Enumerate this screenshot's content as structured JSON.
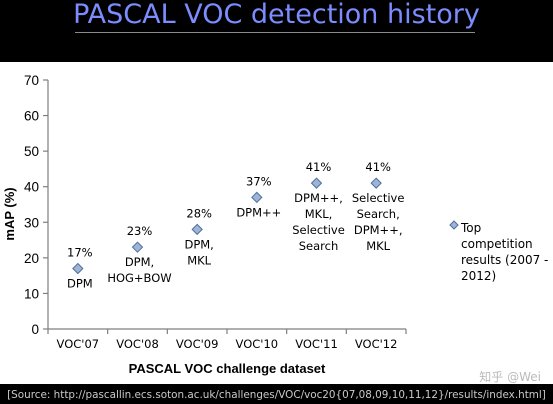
{
  "title": "PASCAL VOC detection history",
  "source": "[Source: http://pascallin.ecs.soton.ac.uk/challenges/VOC/voc20{07,08,09,10,11,12}/results/index.html]",
  "watermark": "知乎 @Wei",
  "colors": {
    "title": "#7b8cff",
    "marker_fill": "#9db4d6",
    "marker_stroke": "#4e6f9b"
  },
  "chart_data": {
    "type": "scatter",
    "xlabel": "PASCAL VOC challenge dataset",
    "ylabel": "mAP  (%)",
    "ylim": [
      0,
      70
    ],
    "yticks": [
      0,
      10,
      20,
      30,
      40,
      50,
      60,
      70
    ],
    "grid": false,
    "legend_position": "right",
    "categories": [
      "VOC'07",
      "VOC'08",
      "VOC'09",
      "VOC'10",
      "VOC'11",
      "VOC'12"
    ],
    "series": [
      {
        "name": "Top competition results (2007 - 2012)",
        "values": [
          17,
          23,
          28,
          37,
          41,
          41
        ]
      }
    ],
    "value_labels": [
      "17%",
      "23%",
      "28%",
      "37%",
      "41%",
      "41%"
    ],
    "method_labels": [
      [
        "DPM"
      ],
      [
        "DPM,",
        "HOG+BOW"
      ],
      [
        "DPM,",
        "MKL"
      ],
      [
        "DPM++"
      ],
      [
        "DPM++,",
        "MKL,",
        "Selective",
        "Search"
      ],
      [
        "Selective",
        "Search,",
        "DPM++,",
        "MKL"
      ]
    ],
    "legend_lines": [
      "Top",
      "competition",
      "results (2007 -",
      "2012)"
    ]
  }
}
